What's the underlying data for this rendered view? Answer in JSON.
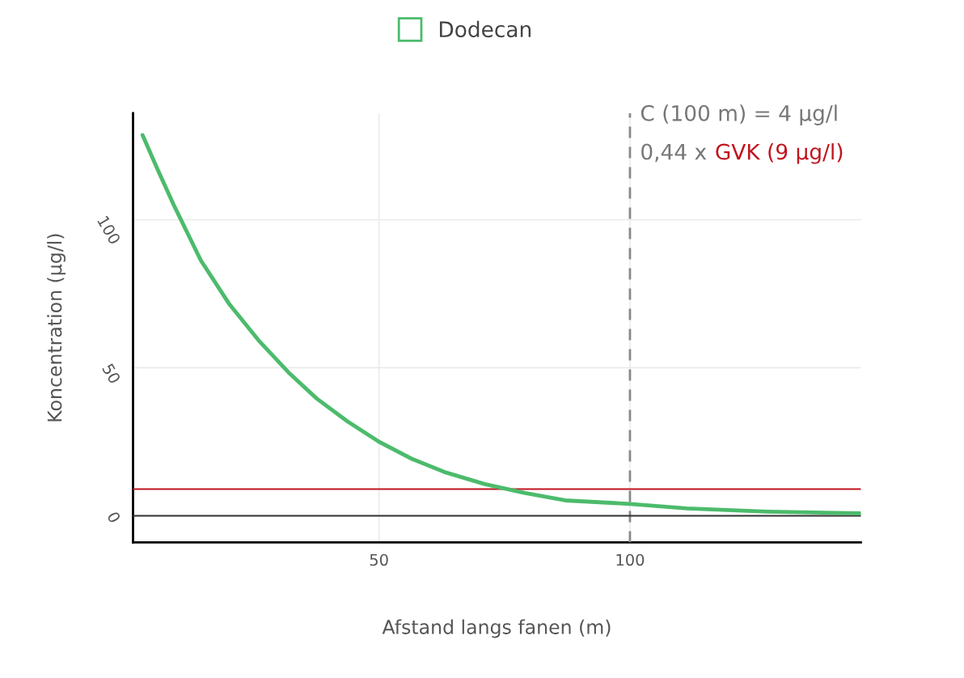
{
  "chart_data": {
    "type": "line",
    "xlabel": "Afstand langs fanen (m)",
    "ylabel": "Koncentration (µg/l)",
    "x": [
      2.9,
      5.9,
      9.2,
      14.5,
      20.1,
      26.0,
      32.0,
      37.6,
      43.7,
      50,
      56.6,
      63.0,
      71.1,
      79.1,
      87.1,
      100,
      111.3,
      127.3,
      145.8
    ],
    "series": [
      {
        "name": "Dodecan",
        "color": "#4cbb6c",
        "values": [
          128.6,
          117.0,
          104.7,
          86.3,
          71.7,
          59.3,
          48.4,
          39.6,
          31.9,
          25,
          19.2,
          14.8,
          10.7,
          7.7,
          5.2,
          4,
          2.5,
          1.4,
          0.8
        ]
      }
    ],
    "xlim": [
      1,
      146
    ],
    "ylim": [
      -9,
      136
    ],
    "xticks": [
      50,
      100
    ],
    "yticks": [
      0,
      50,
      100
    ],
    "grid": true,
    "legend": "top",
    "marker": "none",
    "line_style": "solid",
    "ref_lines": [
      {
        "axis": "x",
        "value": 100,
        "label": "C (100 m) = 4 µg/l",
        "color": "#888888",
        "line_style": "dashed"
      },
      {
        "axis": "y",
        "value": 9,
        "label": "GVK (9 µg/l)",
        "color": "#c0141e",
        "line_style": "solid"
      },
      {
        "axis": "y",
        "value": 0,
        "color": "#333333",
        "line_style": "solid"
      }
    ],
    "annotations": [
      "0,44 x"
    ]
  }
}
